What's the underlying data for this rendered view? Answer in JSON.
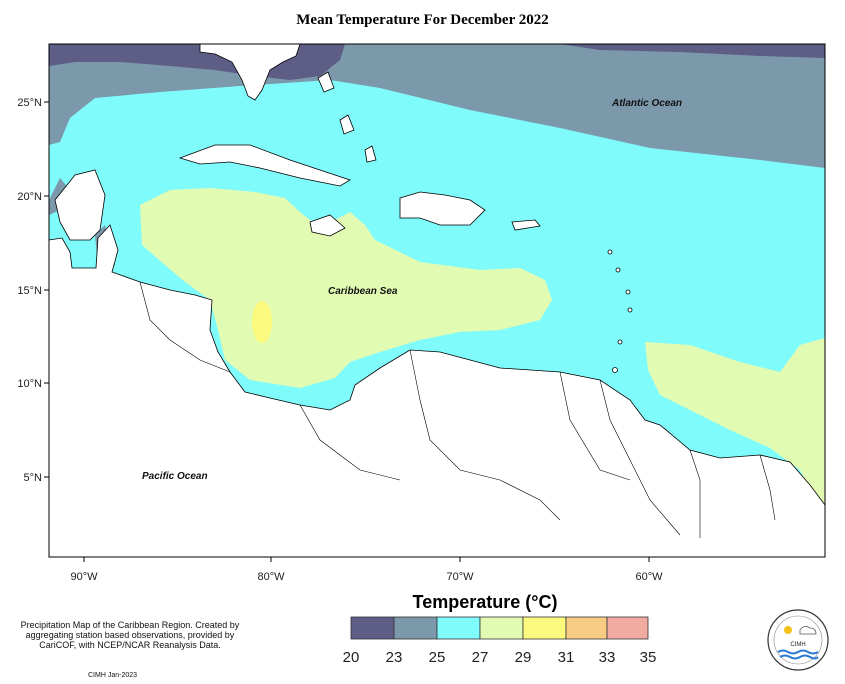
{
  "map": {
    "title": "Mean Temperature For December 2022",
    "ocean_labels": {
      "atlantic": "Atlantic Ocean",
      "caribbean": "Caribbean Sea",
      "pacific": "Pacific Ocean"
    },
    "lat_ticks": [
      "25°N",
      "20°N",
      "15°N",
      "10°N",
      "5°N"
    ],
    "lon_ticks": [
      "90°W",
      "80°W",
      "70°W",
      "60°W"
    ],
    "temperature_classes": [
      {
        "range": "20-23",
        "color": "#5e5d86"
      },
      {
        "range": "23-25",
        "color": "#7c98ab"
      },
      {
        "range": "25-27",
        "color": "#7ffbfc"
      },
      {
        "range": "27-29",
        "color": "#e2fbb3"
      },
      {
        "range": "29-31",
        "color": "#fbf97e"
      },
      {
        "range": "31-33",
        "color": "#f8cd83"
      },
      {
        "range": "33-35",
        "color": "#f1aba0"
      }
    ]
  },
  "legend": {
    "title": "Temperature (°C)",
    "ticks": [
      "20",
      "23",
      "25",
      "27",
      "29",
      "31",
      "33",
      "35"
    ]
  },
  "footer": {
    "note": "Precipitation Map of the Caribbean Region. Created by aggregating station based observations, provided by CariCOF, with NCEP/NCAR Reanalysis Data.",
    "credit": "CIMH Jan-2023",
    "logo_text": "CIMH"
  }
}
